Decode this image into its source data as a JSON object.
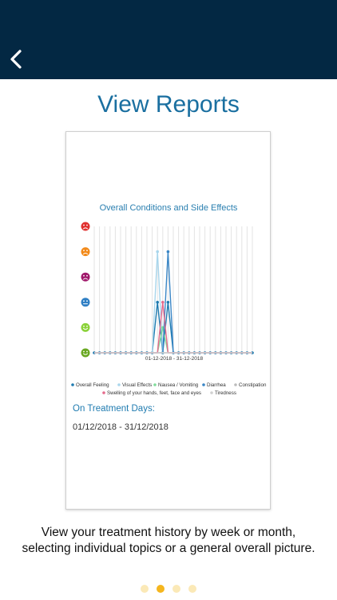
{
  "header": {
    "back_icon": "chevron-left-icon",
    "background": "#032843"
  },
  "page": {
    "title": "View Reports"
  },
  "report": {
    "treatment_title": "On Treatment Days:",
    "treatment_range": "01/12/2018 - 31/12/2018"
  },
  "chart_data": {
    "type": "line",
    "title": "Overall Conditions and Side Effects",
    "xlabel": "01-12-2018 - 31-12-2018",
    "x": [
      1,
      2,
      3,
      4,
      5,
      6,
      7,
      8,
      9,
      10,
      11,
      12,
      13,
      14,
      15,
      16,
      17,
      18,
      19,
      20,
      21,
      22,
      23,
      24,
      25,
      26,
      27,
      28,
      29,
      30,
      31
    ],
    "ylim": [
      0,
      5
    ],
    "y_icons": [
      "very-happy-face-icon",
      "happy-face-icon",
      "neutral-face-icon",
      "unhappy-face-icon",
      "sad-face-icon",
      "very-sad-face-icon"
    ],
    "y_icon_colors": [
      "#6aa822",
      "#8bd23a",
      "#2f7fc4",
      "#a0196b",
      "#f28a1a",
      "#e0312f"
    ],
    "series": [
      {
        "name": "Overall Feeling",
        "color": "#1f7bb0",
        "values": [
          0,
          0,
          0,
          0,
          0,
          0,
          0,
          0,
          0,
          0,
          0,
          0,
          2,
          0,
          2,
          0,
          0,
          0,
          0,
          0,
          0,
          0,
          0,
          0,
          0,
          0,
          0,
          0,
          0,
          0,
          0
        ]
      },
      {
        "name": "Visual Effects",
        "color": "#a9d6ec",
        "values": [
          0,
          0,
          0,
          0,
          0,
          0,
          0,
          0,
          0,
          0,
          0,
          0,
          4,
          0,
          0,
          0,
          0,
          0,
          0,
          0,
          0,
          0,
          0,
          0,
          0,
          0,
          0,
          0,
          0,
          0,
          0
        ]
      },
      {
        "name": "Nausea / Vomiting",
        "color": "#7fdc9a",
        "values": [
          0,
          0,
          0,
          0,
          0,
          0,
          0,
          0,
          0,
          0,
          0,
          0,
          0,
          1,
          0,
          0,
          0,
          0,
          0,
          0,
          0,
          0,
          0,
          0,
          0,
          0,
          0,
          0,
          0,
          0,
          0
        ]
      },
      {
        "name": "Diarrhea",
        "color": "#3a86c6",
        "values": [
          0,
          0,
          0,
          0,
          0,
          0,
          0,
          0,
          0,
          0,
          0,
          0,
          0,
          0,
          4,
          0,
          0,
          0,
          0,
          0,
          0,
          0,
          0,
          0,
          0,
          0,
          0,
          0,
          0,
          0,
          0
        ]
      },
      {
        "name": "Constipation",
        "color": "#bcbcbc",
        "values": [
          0,
          0,
          0,
          0,
          0,
          0,
          0,
          0,
          0,
          0,
          0,
          0,
          0,
          0,
          0,
          0,
          0,
          0,
          0,
          0,
          0,
          0,
          0,
          0,
          0,
          0,
          0,
          0,
          0,
          0,
          0
        ]
      },
      {
        "name": "Swelling of your hands, feet, face and eyes",
        "color": "#e56a8c",
        "values": [
          0,
          0,
          0,
          0,
          0,
          0,
          0,
          0,
          0,
          0,
          0,
          0,
          0,
          2,
          0,
          0,
          0,
          0,
          0,
          0,
          0,
          0,
          0,
          0,
          0,
          0,
          0,
          0,
          0,
          0,
          0
        ]
      },
      {
        "name": "Tiredness",
        "color": "#d0d0d0",
        "values": [
          0,
          0,
          0,
          0,
          0,
          0,
          0,
          0,
          0,
          0,
          0,
          0,
          0,
          0,
          0,
          0,
          0,
          0,
          0,
          0,
          0,
          0,
          0,
          0,
          0,
          0,
          0,
          0,
          0,
          0,
          0
        ]
      }
    ]
  },
  "caption": "View your treatment history by week or month, selecting individual topics or a general overall picture.",
  "pagination": {
    "count": 4,
    "active": 2,
    "active_color": "#f5b61e",
    "inactive_color": "#fbe9b7"
  }
}
